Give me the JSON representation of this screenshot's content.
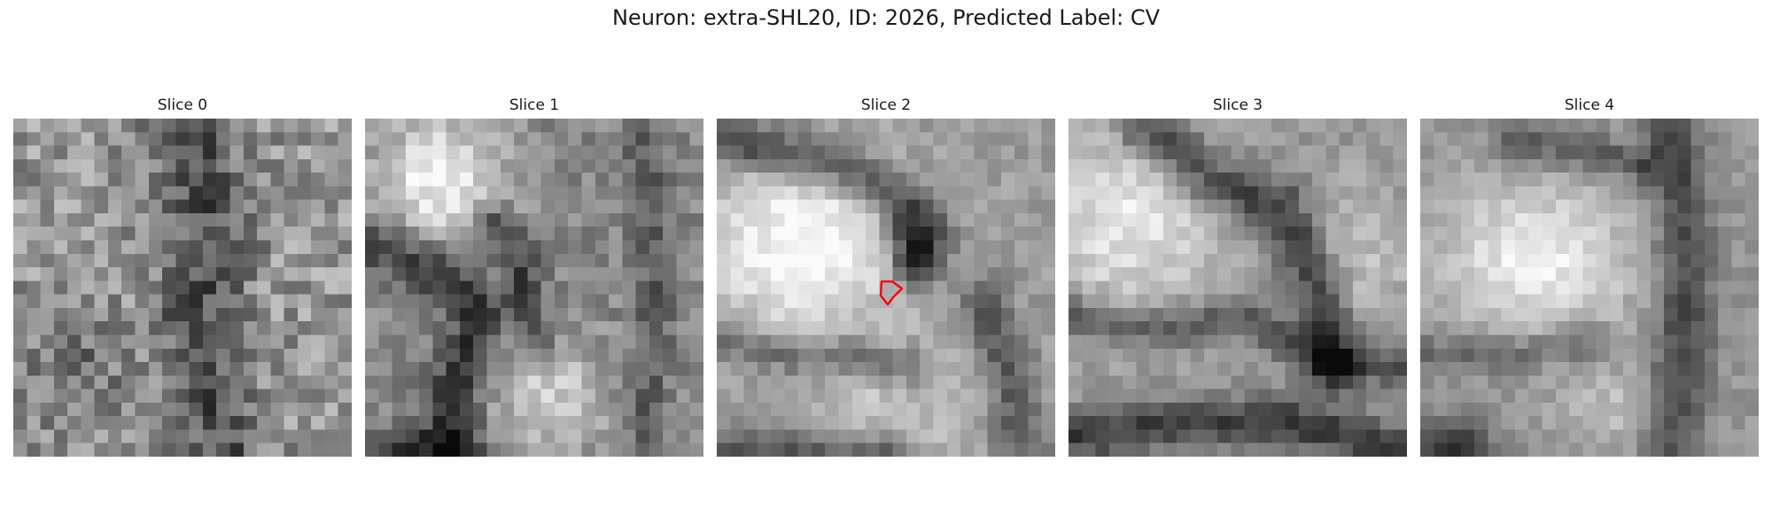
{
  "figure": {
    "title": "Neuron: extra-SHL20, ID: 2026, Predicted Label: CV"
  },
  "panels": [
    {
      "title": "Slice 0",
      "texture": "noisy-dark-band",
      "has_roi": false
    },
    {
      "title": "Slice 1",
      "texture": "bright-blob-top-left",
      "has_roi": false
    },
    {
      "title": "Slice 2",
      "texture": "large-bright-blob-with-membrane",
      "has_roi": true
    },
    {
      "title": "Slice 3",
      "texture": "diagonal-membranes",
      "has_roi": false
    },
    {
      "title": "Slice 4",
      "texture": "bright-blob-with-vertical-band",
      "has_roi": false
    }
  ],
  "roi": {
    "color": "#ff0000",
    "shape": "small-hexagon-contour"
  },
  "colormap": "gray"
}
